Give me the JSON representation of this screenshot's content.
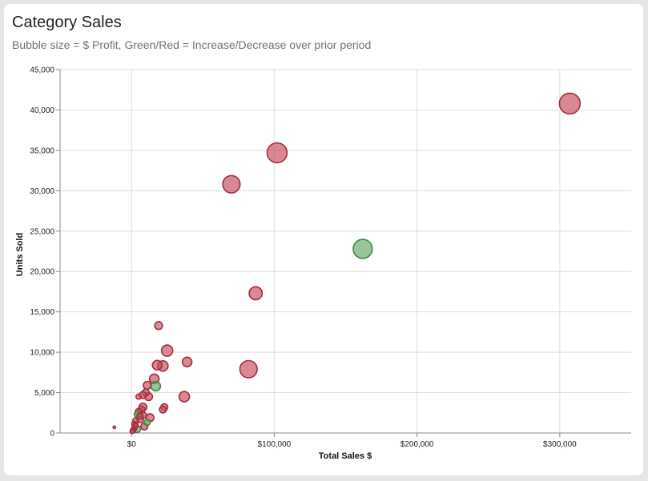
{
  "header": {
    "title": "Category Sales",
    "subtitle": "Bubble size = $ Profit, Green/Red = Increase/Decrease over prior period"
  },
  "colors": {
    "increase": "#5fa862",
    "decrease": "#c34a5a",
    "increase_stroke": "#3e8a42",
    "decrease_stroke": "#a82a3c",
    "grid": "#dedede"
  },
  "chart_data": {
    "type": "scatter",
    "title": "Category Sales",
    "subtitle": "Bubble size = $ Profit, Green/Red = Increase/Decrease over prior period",
    "xlabel": "Total Sales $",
    "ylabel": "Units Sold",
    "xlim": [
      -50000,
      350000
    ],
    "ylim": [
      0,
      45000
    ],
    "x_ticks": [
      0,
      100000,
      200000,
      300000
    ],
    "x_tick_labels": [
      "$0",
      "$100,000",
      "$200,000",
      "$300,000"
    ],
    "y_ticks": [
      0,
      5000,
      10000,
      15000,
      20000,
      25000,
      30000,
      35000,
      40000,
      45000
    ],
    "y_tick_labels": [
      "0",
      "5,000",
      "10,000",
      "15,000",
      "20,000",
      "25,000",
      "30,000",
      "35,000",
      "40,000",
      "45,000"
    ],
    "grid": true,
    "legend": "none",
    "size_encoding": "$ Profit",
    "color_encoding": "increase/decrease over prior period",
    "points": [
      {
        "x": 307000,
        "y": 40800,
        "size": 12,
        "change": "decrease"
      },
      {
        "x": 102000,
        "y": 34700,
        "size": 11.5,
        "change": "decrease"
      },
      {
        "x": 70000,
        "y": 30800,
        "size": 10,
        "change": "decrease"
      },
      {
        "x": 162000,
        "y": 22800,
        "size": 11,
        "change": "increase"
      },
      {
        "x": 87000,
        "y": 17300,
        "size": 7.5,
        "change": "decrease"
      },
      {
        "x": 82000,
        "y": 7900,
        "size": 10,
        "change": "decrease"
      },
      {
        "x": 19000,
        "y": 13300,
        "size": 4.5,
        "change": "decrease"
      },
      {
        "x": 25000,
        "y": 10200,
        "size": 6.5,
        "change": "decrease"
      },
      {
        "x": 39000,
        "y": 8800,
        "size": 5.5,
        "change": "decrease"
      },
      {
        "x": 22000,
        "y": 8300,
        "size": 6,
        "change": "decrease"
      },
      {
        "x": 18000,
        "y": 8400,
        "size": 5.5,
        "change": "decrease"
      },
      {
        "x": 16000,
        "y": 6700,
        "size": 5.5,
        "change": "decrease"
      },
      {
        "x": 17000,
        "y": 5800,
        "size": 5.5,
        "change": "increase"
      },
      {
        "x": 11000,
        "y": 5900,
        "size": 4.5,
        "change": "decrease"
      },
      {
        "x": 10000,
        "y": 5000,
        "size": 4,
        "change": "decrease"
      },
      {
        "x": 12000,
        "y": 4500,
        "size": 4.5,
        "change": "decrease"
      },
      {
        "x": 37000,
        "y": 4500,
        "size": 6,
        "change": "decrease"
      },
      {
        "x": 8000,
        "y": 4700,
        "size": 4,
        "change": "decrease"
      },
      {
        "x": 5000,
        "y": 4500,
        "size": 3,
        "change": "decrease"
      },
      {
        "x": 23000,
        "y": 3200,
        "size": 4,
        "change": "decrease"
      },
      {
        "x": 22000,
        "y": 2900,
        "size": 4,
        "change": "decrease"
      },
      {
        "x": 8000,
        "y": 3200,
        "size": 4.5,
        "change": "decrease"
      },
      {
        "x": 7000,
        "y": 2900,
        "size": 4,
        "change": "decrease"
      },
      {
        "x": 5000,
        "y": 2600,
        "size": 4,
        "change": "decrease"
      },
      {
        "x": 4000,
        "y": 2300,
        "size": 3.5,
        "change": "increase"
      },
      {
        "x": 8000,
        "y": 2200,
        "size": 4,
        "change": "decrease"
      },
      {
        "x": 13000,
        "y": 1900,
        "size": 4.5,
        "change": "decrease"
      },
      {
        "x": 6000,
        "y": 1700,
        "size": 4,
        "change": "decrease"
      },
      {
        "x": 11000,
        "y": 1300,
        "size": 3.5,
        "change": "increase"
      },
      {
        "x": 3000,
        "y": 1500,
        "size": 3.5,
        "change": "decrease"
      },
      {
        "x": 2000,
        "y": 1100,
        "size": 3,
        "change": "decrease"
      },
      {
        "x": 9000,
        "y": 800,
        "size": 4,
        "change": "decrease"
      },
      {
        "x": 4000,
        "y": 500,
        "size": 4,
        "change": "increase"
      },
      {
        "x": 2000,
        "y": 600,
        "size": 3,
        "change": "decrease"
      },
      {
        "x": 1000,
        "y": 300,
        "size": 3,
        "change": "decrease"
      },
      {
        "x": 500,
        "y": 200,
        "size": 2.5,
        "change": "decrease"
      },
      {
        "x": 3000,
        "y": 900,
        "size": 3,
        "change": "decrease"
      },
      {
        "x": 6000,
        "y": 2100,
        "size": 3.5,
        "change": "decrease"
      },
      {
        "x": -12000,
        "y": 700,
        "size": 1.5,
        "change": "decrease"
      }
    ]
  }
}
